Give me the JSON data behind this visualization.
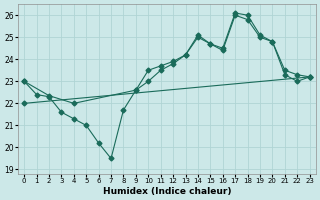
{
  "xlabel": "Humidex (Indice chaleur)",
  "xlim": [
    -0.5,
    23.5
  ],
  "ylim": [
    18.8,
    26.5
  ],
  "xticks": [
    0,
    1,
    2,
    3,
    4,
    5,
    6,
    7,
    8,
    9,
    10,
    11,
    12,
    13,
    14,
    15,
    16,
    17,
    18,
    19,
    20,
    21,
    22,
    23
  ],
  "yticks": [
    19,
    20,
    21,
    22,
    23,
    24,
    25,
    26
  ],
  "bg_color": "#cce8e8",
  "grid_color": "#b0d4d4",
  "line_color": "#1a6b5a",
  "line1_x": [
    0,
    1,
    2,
    3,
    4,
    5,
    6,
    7,
    8,
    9,
    10,
    11,
    12,
    13,
    14,
    15,
    16,
    17,
    18,
    19,
    20,
    21,
    22,
    23
  ],
  "line1_y": [
    23.0,
    22.4,
    22.3,
    21.6,
    21.3,
    21.0,
    20.2,
    19.5,
    21.7,
    22.6,
    23.5,
    23.7,
    23.9,
    24.2,
    25.1,
    24.7,
    24.5,
    26.1,
    26.0,
    25.1,
    24.8,
    23.5,
    23.3,
    23.2
  ],
  "line2_x": [
    0,
    2,
    4,
    9,
    10,
    11,
    12,
    13,
    14,
    15,
    16,
    17,
    18,
    19,
    20,
    21,
    22,
    23
  ],
  "line2_y": [
    23.0,
    22.35,
    22.0,
    22.6,
    23.0,
    23.5,
    23.8,
    24.2,
    25.0,
    24.7,
    24.4,
    26.0,
    25.8,
    25.0,
    24.8,
    23.3,
    23.0,
    23.2
  ],
  "line3_x": [
    0,
    23
  ],
  "line3_y": [
    22.0,
    23.2
  ],
  "marker": "D",
  "markersize": 2.5
}
